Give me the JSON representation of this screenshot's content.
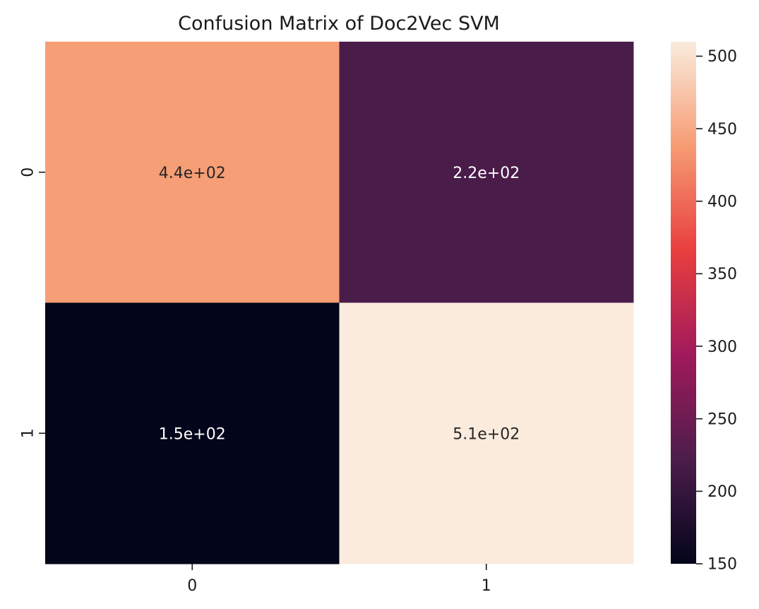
{
  "chart_data": {
    "type": "heatmap",
    "title": "Confusion Matrix of Doc2Vec SVM",
    "xlabel": "",
    "ylabel": "",
    "x_categories": [
      "0",
      "1"
    ],
    "y_categories": [
      "0",
      "1"
    ],
    "values": [
      [
        440,
        220
      ],
      [
        150,
        510
      ]
    ],
    "annotations": [
      [
        "4.4e+02",
        "2.2e+02"
      ],
      [
        "1.5e+02",
        "5.1e+02"
      ]
    ],
    "colorbar": {
      "range": [
        150,
        510
      ],
      "ticks": [
        "150",
        "200",
        "250",
        "300",
        "350",
        "400",
        "450",
        "500"
      ],
      "colormap": "rocket",
      "colors": [
        "#03051a",
        "#4c1d4b",
        "#a11a5b",
        "#e83f3f",
        "#f69c73",
        "#faebdd"
      ]
    },
    "text_colors": {
      "light": "#ffffff",
      "dark": "#262626"
    }
  }
}
